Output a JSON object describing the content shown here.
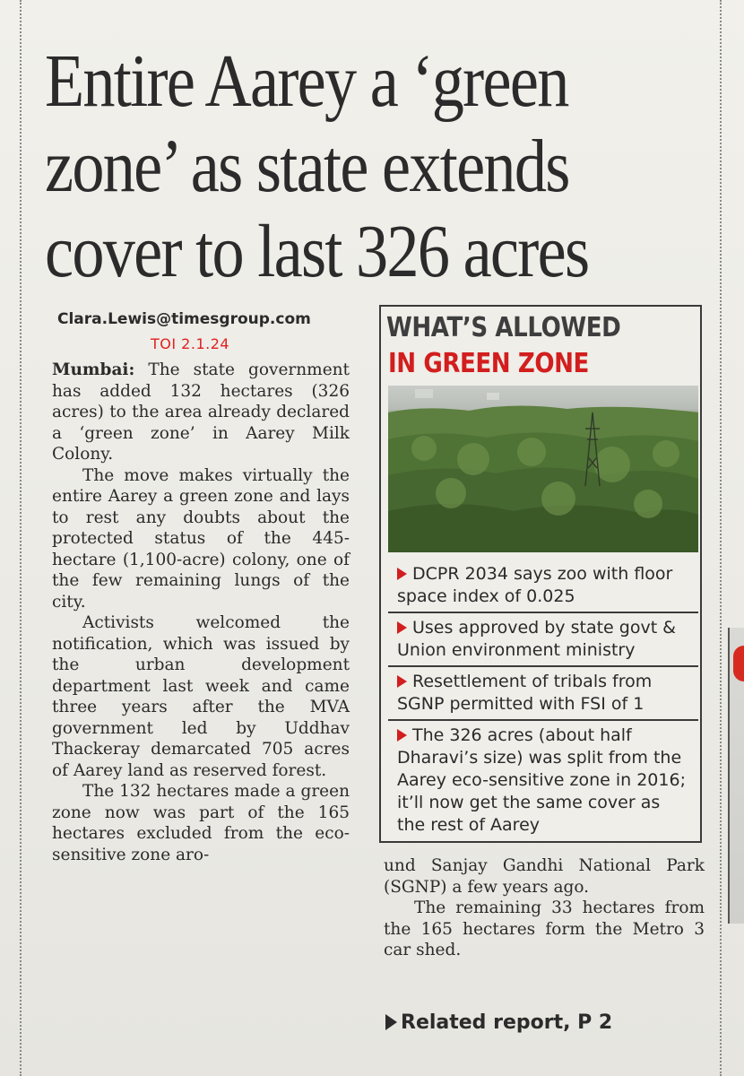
{
  "headline": {
    "line1": "Entire Aarey a ‘green",
    "line2": "zone’ as state extends",
    "line3": "cover to last 326 acres"
  },
  "byline": "Clara.Lewis@timesgroup.com",
  "stamp": "TOI 2.1.24",
  "article": {
    "dateline": "Mumbai:",
    "p1": " The state government has added 132 hectares (326 acres) to the area already declared a ‘green zone’ in Aarey Milk Colony.",
    "p2": "The move makes virtually the entire Aarey a green zone and lays to rest any doubts about the protected status of the 445-hectare (1,100-acre) colony, one of the few remaining lungs of the city.",
    "p3": "Activists welcomed the notification, which was issued by the urban development department last week and came three years after the MVA government led by Uddhav Thackeray demarcated 705 acres of Aarey land as reserved forest.",
    "p4": "The 132 hectares made a green zone now was part of the 165 hectares excluded from the eco-sensitive zone aro-",
    "p5": "und Sanjay Gandhi National Park (SGNP) a few years ago.",
    "p6": "The remaining 33 hectares from the 165 hectares form the Metro 3 car shed."
  },
  "sidebar": {
    "title_line1": "WHAT’S ALLOWED",
    "title_line2": "IN GREEN ZONE",
    "accent_color": "#d21e1e",
    "items": [
      "DCPR 2034 says zoo with floor space index of 0.025",
      "Uses approved by state govt & Union environment ministry",
      "Resettlement of tribals from SGNP permitted with FSI of 1",
      "The 326 acres (about half Dharavi’s size) was split from the Aarey eco-sensitive zone in 2016; it’ll now get the same cover as the rest of Aarey"
    ]
  },
  "related": "Related report, P 2"
}
